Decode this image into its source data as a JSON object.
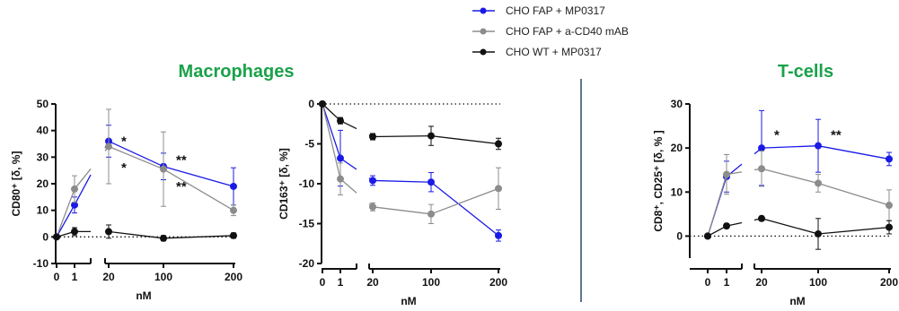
{
  "legend": {
    "items": [
      {
        "label": "CHO FAP + MP0317",
        "color": "#1a1ae6"
      },
      {
        "label": "CHO FAP + a-CD40 mAB",
        "color": "#8c8c8c"
      },
      {
        "label": "CHO WT + MP0317",
        "color": "#111111"
      }
    ]
  },
  "sections": {
    "macrophages_title": "Macrophages",
    "tcells_title": "T-cells"
  },
  "chart_data": [
    {
      "type": "line",
      "ylabel": "CD80⁺ [δ, %]",
      "xlabel": "nM",
      "x_ticks": [
        "0",
        "1",
        "20",
        "100",
        "200"
      ],
      "ylim": [
        -10,
        50
      ],
      "y_ticks": [
        "-10",
        "0",
        "10",
        "20",
        "30",
        "40",
        "50"
      ],
      "baseline": 0,
      "series": [
        {
          "name": "CHO FAP + MP0317",
          "color": "#1a1ae6",
          "points": [
            {
              "x": 0,
              "y": 0,
              "err": 0
            },
            {
              "x": 1,
              "y": 12,
              "err": 3
            },
            {
              "x": 20,
              "y": 36,
              "err": 6
            },
            {
              "x": 100,
              "y": 26.5,
              "err": 5
            },
            {
              "x": 200,
              "y": 19,
              "err": 7
            }
          ]
        },
        {
          "name": "CHO FAP + a-CD40 mAB",
          "color": "#8c8c8c",
          "points": [
            {
              "x": 0,
              "y": 0,
              "err": 0
            },
            {
              "x": 1,
              "y": 18,
              "err": 5
            },
            {
              "x": 20,
              "y": 34,
              "err": 14
            },
            {
              "x": 100,
              "y": 25.5,
              "err": 14
            },
            {
              "x": 200,
              "y": 10,
              "err": 2
            }
          ]
        },
        {
          "name": "CHO WT + MP0317",
          "color": "#111111",
          "points": [
            {
              "x": 0,
              "y": 0,
              "err": 0
            },
            {
              "x": 1,
              "y": 2,
              "err": 1.5
            },
            {
              "x": 20,
              "y": 2,
              "err": 2.5
            },
            {
              "x": 100,
              "y": -0.5,
              "err": 1
            },
            {
              "x": 200,
              "y": 0.5,
              "err": 1
            }
          ]
        }
      ],
      "annotations": [
        {
          "x": 20,
          "y": 36,
          "text": "*"
        },
        {
          "x": 20,
          "y": 26,
          "text": "*"
        },
        {
          "x": 100,
          "y": 29,
          "text": "**"
        },
        {
          "x": 100,
          "y": 19,
          "text": "**"
        }
      ]
    },
    {
      "type": "line",
      "ylabel": "CD163⁺ [δ, %]",
      "xlabel": "nM",
      "x_ticks": [
        "0",
        "1",
        "20",
        "100",
        "200"
      ],
      "ylim": [
        -20,
        0
      ],
      "y_ticks": [
        "-20",
        "-15",
        "-10",
        "-5",
        "0"
      ],
      "baseline": 0,
      "series": [
        {
          "name": "CHO FAP + MP0317",
          "color": "#1a1ae6",
          "points": [
            {
              "x": 0,
              "y": 0,
              "err": 0
            },
            {
              "x": 1,
              "y": -6.8,
              "err": 3.5
            },
            {
              "x": 20,
              "y": -9.6,
              "err": 0.6
            },
            {
              "x": 100,
              "y": -9.8,
              "err": 1.2
            },
            {
              "x": 200,
              "y": -16.5,
              "err": 0.7
            }
          ]
        },
        {
          "name": "CHO FAP + a-CD40 mAB",
          "color": "#8c8c8c",
          "points": [
            {
              "x": 0,
              "y": 0,
              "err": 0
            },
            {
              "x": 1,
              "y": -9.4,
              "err": 2
            },
            {
              "x": 20,
              "y": -12.9,
              "err": 0.5
            },
            {
              "x": 100,
              "y": -13.8,
              "err": 1.2
            },
            {
              "x": 200,
              "y": -10.6,
              "err": 2.6
            }
          ]
        },
        {
          "name": "CHO WT + MP0317",
          "color": "#111111",
          "points": [
            {
              "x": 0,
              "y": 0,
              "err": 0
            },
            {
              "x": 1,
              "y": -2.1,
              "err": 0.4
            },
            {
              "x": 20,
              "y": -4.1,
              "err": 0.4
            },
            {
              "x": 100,
              "y": -4.0,
              "err": 1.2
            },
            {
              "x": 200,
              "y": -5.0,
              "err": 0.7
            }
          ]
        }
      ],
      "annotations": []
    },
    {
      "type": "line",
      "ylabel": "CD8⁺, CD25⁺ [δ, % ]",
      "xlabel": "nM",
      "x_ticks": [
        "0",
        "1",
        "20",
        "100",
        "200"
      ],
      "ylim": [
        -5,
        30
      ],
      "y_ticks": [
        "0",
        "10",
        "20",
        "30"
      ],
      "baseline": 0,
      "series": [
        {
          "name": "CHO FAP + MP0317",
          "color": "#1a1ae6",
          "points": [
            {
              "x": 0,
              "y": 0,
              "err": 0
            },
            {
              "x": 1,
              "y": 13.5,
              "err": 3.5
            },
            {
              "x": 20,
              "y": 20,
              "err": 8.5
            },
            {
              "x": 100,
              "y": 20.5,
              "err": 6
            },
            {
              "x": 200,
              "y": 17.5,
              "err": 1.5
            }
          ]
        },
        {
          "name": "CHO FAP + a-CD40 mAB",
          "color": "#8c8c8c",
          "points": [
            {
              "x": 0,
              "y": 0,
              "err": 0
            },
            {
              "x": 1,
              "y": 14,
              "err": 4.5
            },
            {
              "x": 20,
              "y": 15.3,
              "err": 4
            },
            {
              "x": 100,
              "y": 12,
              "err": 2
            },
            {
              "x": 200,
              "y": 7,
              "err": 3.5
            }
          ]
        },
        {
          "name": "CHO WT + MP0317",
          "color": "#111111",
          "points": [
            {
              "x": 0,
              "y": 0,
              "err": 0
            },
            {
              "x": 1,
              "y": 2.3,
              "err": 0.5
            },
            {
              "x": 20,
              "y": 4,
              "err": 0.5
            },
            {
              "x": 100,
              "y": 0.5,
              "err": 3.5
            },
            {
              "x": 200,
              "y": 2,
              "err": 1.5
            }
          ]
        }
      ],
      "annotations": [
        {
          "x": 20,
          "y": 23,
          "text": "*"
        },
        {
          "x": 100,
          "y": 23,
          "text": "**"
        },
        {
          "x": 200,
          "y": 21,
          "text": "*"
        }
      ]
    }
  ]
}
